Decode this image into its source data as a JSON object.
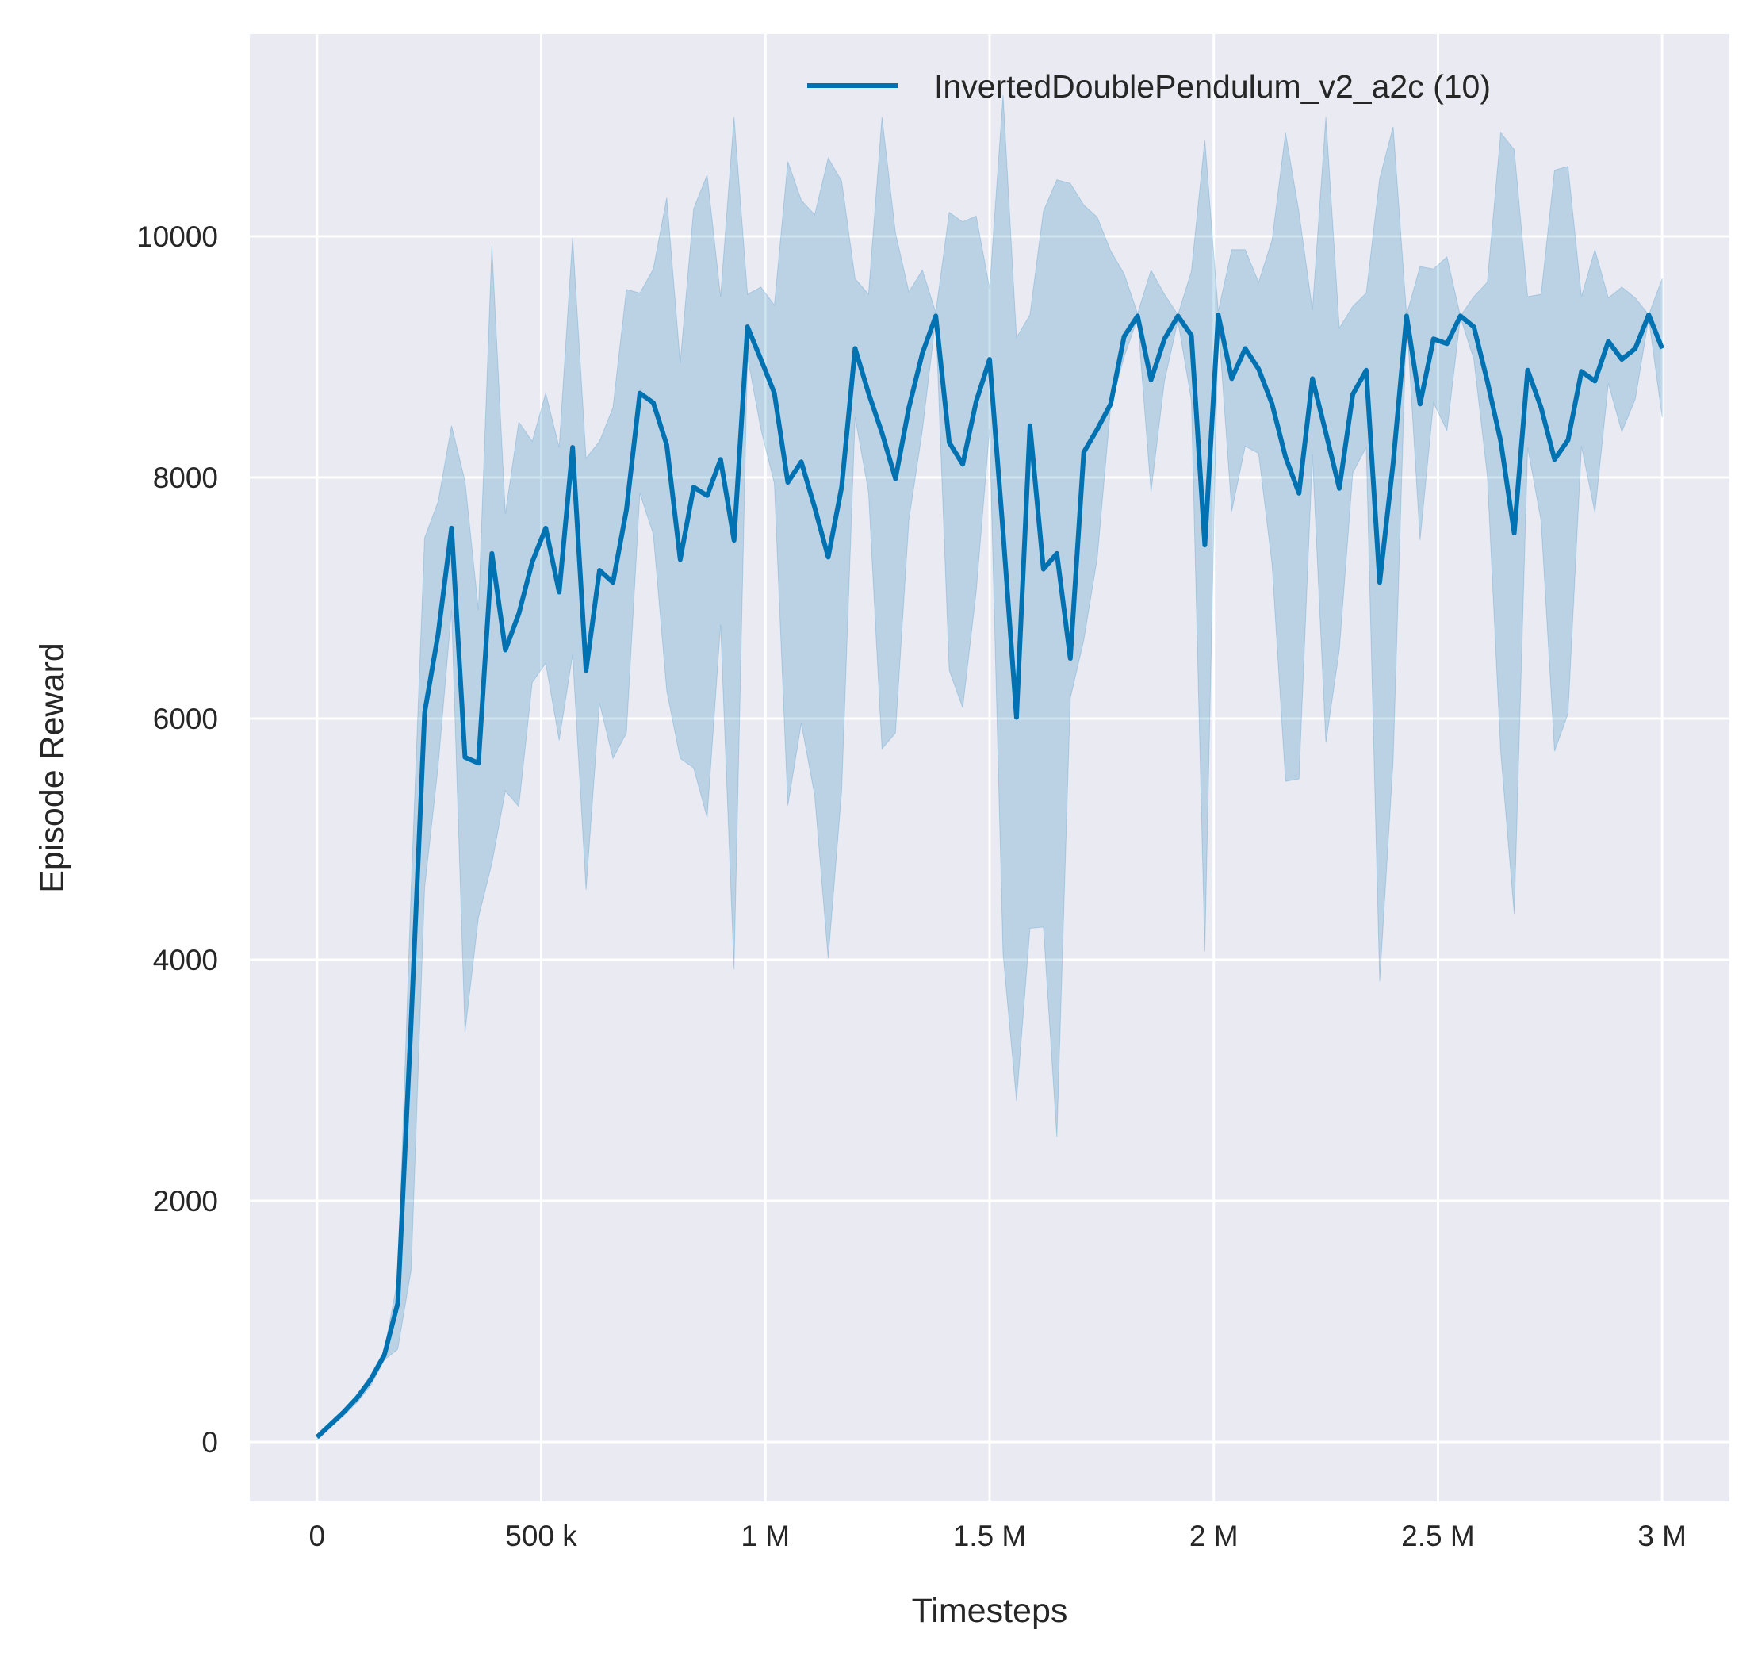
{
  "chart_data": {
    "type": "line",
    "title": "",
    "xlabel": "Timesteps",
    "ylabel": "Episode Reward",
    "xlim": [
      -150000,
      3150000
    ],
    "ylim": [
      -493,
      11678
    ],
    "grid": true,
    "legend_placement": "top-right",
    "colors": {
      "line": "#0072b2",
      "band": "#0072b2",
      "background": "#eaeaf2",
      "grid": "#ffffff"
    },
    "xticks": [
      {
        "value": 0,
        "label": "0"
      },
      {
        "value": 500000,
        "label": "500 k"
      },
      {
        "value": 1000000,
        "label": "1 M"
      },
      {
        "value": 1500000,
        "label": "1.5 M"
      },
      {
        "value": 2000000,
        "label": "2 M"
      },
      {
        "value": 2500000,
        "label": "2.5 M"
      },
      {
        "value": 3000000,
        "label": "3 M"
      }
    ],
    "yticks": [
      {
        "value": 0,
        "label": "0"
      },
      {
        "value": 2000,
        "label": "2000"
      },
      {
        "value": 4000,
        "label": "4000"
      },
      {
        "value": 6000,
        "label": "6000"
      },
      {
        "value": 8000,
        "label": "8000"
      },
      {
        "value": 10000,
        "label": "10000"
      }
    ],
    "series": [
      {
        "name": "InvertedDoublePendulum_v2_a2c (10)",
        "x": [
          0,
          60000,
          90000,
          120000,
          150000,
          180000,
          210000,
          240000,
          270000,
          300000,
          330000,
          360000,
          390000,
          420000,
          450000,
          480000,
          510000,
          540000,
          570000,
          600000,
          630000,
          660000,
          690000,
          720000,
          750000,
          780000,
          810000,
          840000,
          870000,
          900000,
          930000,
          960000,
          990000,
          1020000,
          1050000,
          1080000,
          1110000,
          1140000,
          1170000,
          1200000,
          1230000,
          1260000,
          1290000,
          1320000,
          1350000,
          1380000,
          1410000,
          1440000,
          1470000,
          1500000,
          1530000,
          1560000,
          1590000,
          1620000,
          1650000,
          1680000,
          1710000,
          1740000,
          1770000,
          1800000,
          1830000,
          1860000,
          1890000,
          1920000,
          1950000,
          1980000,
          2010000,
          2040000,
          2070000,
          2100000,
          2130000,
          2160000,
          2190000,
          2220000,
          2250000,
          2280000,
          2310000,
          2340000,
          2370000,
          2400000,
          2430000,
          2460000,
          2490000,
          2520000,
          2550000,
          2580000,
          2610000,
          2640000,
          2670000,
          2700000,
          2730000,
          2760000,
          2790000,
          2820000,
          2850000,
          2880000,
          2910000,
          2940000,
          2970000,
          3000000
        ],
        "mean": [
          40,
          250,
          370,
          520,
          720,
          1150,
          3500,
          6050,
          6700,
          7580,
          5680,
          5630,
          7370,
          6570,
          6870,
          7300,
          7580,
          7050,
          8250,
          6400,
          7230,
          7130,
          7730,
          8700,
          8620,
          8270,
          7320,
          7920,
          7850,
          8150,
          7480,
          9250,
          8980,
          8700,
          7960,
          8130,
          7750,
          7340,
          7920,
          9070,
          8700,
          8370,
          7990,
          8580,
          9030,
          9340,
          8290,
          8110,
          8630,
          8980,
          7550,
          6010,
          8430,
          7240,
          7370,
          6500,
          8210,
          8400,
          8610,
          9170,
          9340,
          8810,
          9150,
          9340,
          9180,
          7440,
          9350,
          8820,
          9070,
          8900,
          8610,
          8170,
          7870,
          8820,
          8370,
          7910,
          8690,
          8890,
          7130,
          8120,
          9340,
          8610,
          9150,
          9110,
          9340,
          9250,
          8800,
          8300,
          7540,
          8890,
          8580,
          8150,
          8310,
          8880,
          8800,
          9130,
          8980,
          9070,
          9350,
          9070
        ],
        "upper": [
          60,
          270,
          390,
          560,
          760,
          1350,
          4600,
          7500,
          7800,
          8430,
          7970,
          6900,
          9920,
          7700,
          8460,
          8300,
          8700,
          8250,
          9990,
          8160,
          8300,
          8580,
          9560,
          9530,
          9730,
          10320,
          8950,
          10230,
          10510,
          9500,
          10990,
          9520,
          9580,
          9430,
          10620,
          10300,
          10180,
          10650,
          10460,
          9650,
          9520,
          10990,
          10030,
          9540,
          9720,
          9370,
          10200,
          10120,
          10170,
          9570,
          11170,
          9160,
          9350,
          10210,
          10470,
          10440,
          10260,
          10160,
          9880,
          9690,
          9360,
          9720,
          9520,
          9350,
          9710,
          10800,
          9380,
          9890,
          9890,
          9620,
          9970,
          10860,
          10200,
          9390,
          10990,
          9240,
          9420,
          9530,
          10480,
          10910,
          9350,
          9750,
          9730,
          9830,
          9340,
          9500,
          9620,
          10860,
          10720,
          9500,
          9520,
          10550,
          10580,
          9500,
          9890,
          9490,
          9580,
          9490,
          9350,
          9650
        ],
        "lower": [
          20,
          220,
          330,
          470,
          680,
          770,
          1430,
          4600,
          5600,
          6900,
          3400,
          4350,
          4800,
          5400,
          5270,
          6300,
          6460,
          5820,
          6530,
          4580,
          6130,
          5670,
          5880,
          7870,
          7530,
          6230,
          5670,
          5590,
          5180,
          6780,
          3920,
          9000,
          8400,
          7950,
          5280,
          5960,
          5360,
          4010,
          5400,
          8500,
          7880,
          5750,
          5880,
          7650,
          8390,
          9320,
          6400,
          6090,
          7050,
          8400,
          4050,
          2830,
          4260,
          4270,
          2530,
          6170,
          6650,
          7330,
          8590,
          9000,
          9320,
          7880,
          8800,
          9300,
          8640,
          4070,
          9300,
          7720,
          8260,
          8200,
          7280,
          5480,
          5500,
          8190,
          5800,
          6570,
          8040,
          8250,
          3820,
          5650,
          9330,
          7480,
          8620,
          8390,
          9330,
          8980,
          8020,
          5720,
          4380,
          8250,
          7640,
          5730,
          6040,
          8260,
          7710,
          8780,
          8380,
          8650,
          9320,
          8500
        ]
      }
    ]
  }
}
